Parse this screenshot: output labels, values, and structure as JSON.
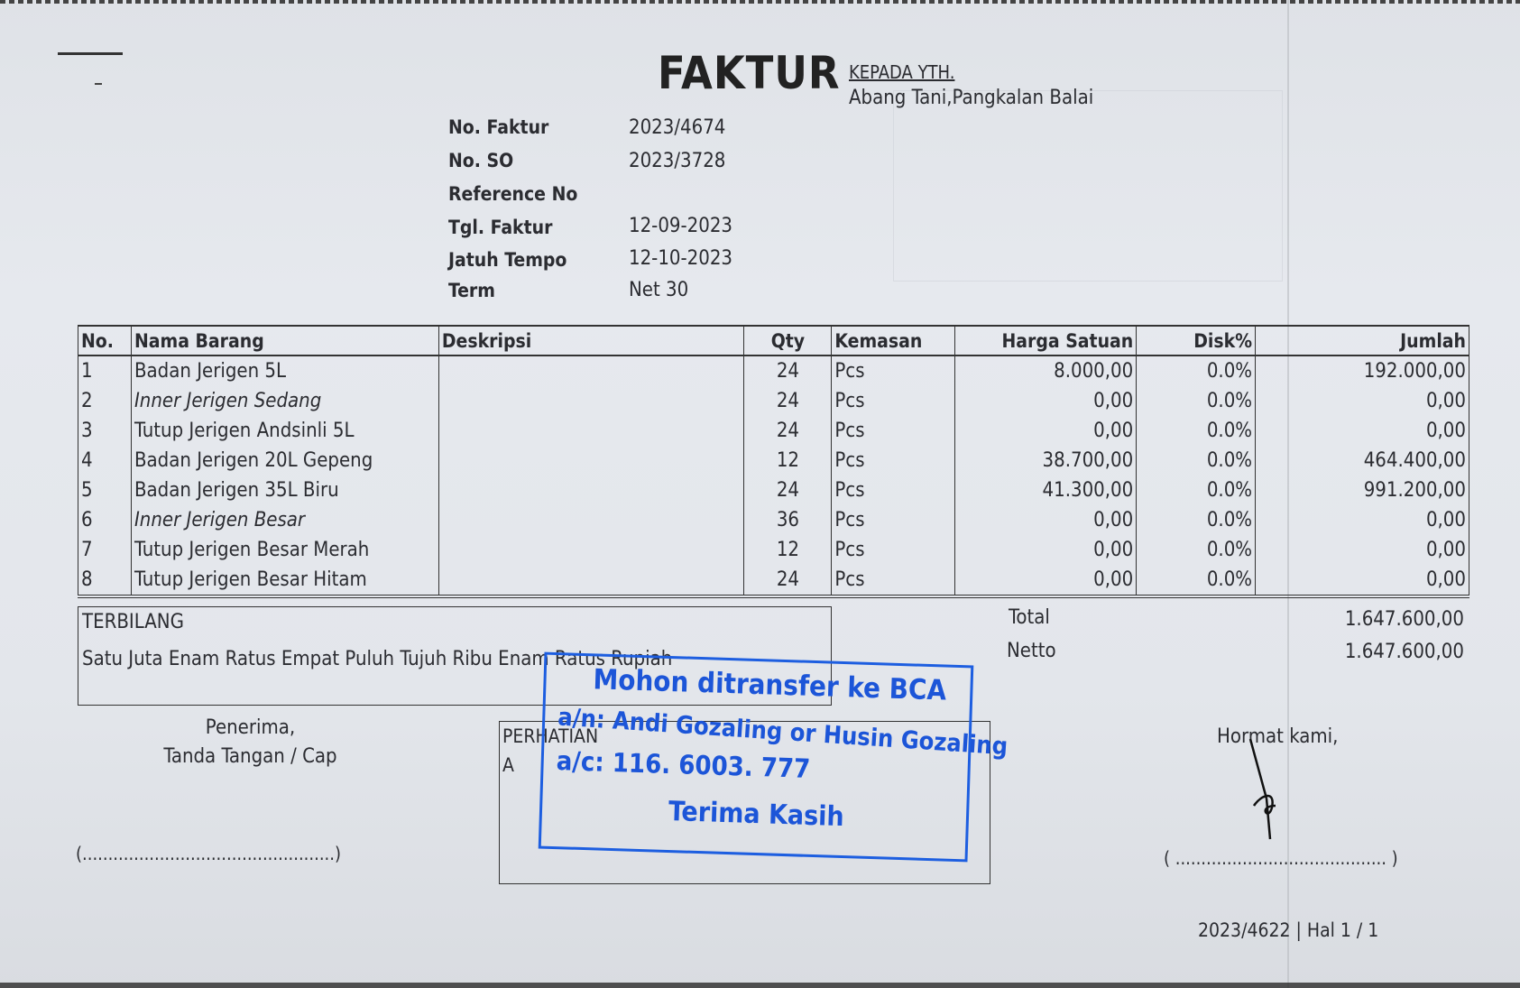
{
  "header": {
    "title": "FAKTUR",
    "recipient_label": "KEPADA YTH.",
    "recipient": "Abang Tani,Pangkalan Balai"
  },
  "meta": [
    {
      "label": "No. Faktur",
      "value": "2023/4674"
    },
    {
      "label": "No. SO",
      "value": "2023/3728"
    },
    {
      "label": "Reference No",
      "value": ""
    },
    {
      "label": "Tgl. Faktur",
      "value": "12-09-2023"
    },
    {
      "label": "Jatuh Tempo",
      "value": "12-10-2023"
    },
    {
      "label": "Term",
      "value": "Net 30"
    }
  ],
  "table": {
    "headers": [
      "No.",
      "Nama Barang",
      "Deskripsi",
      "Qty",
      "Kemasan",
      "Harga Satuan",
      "Disk%",
      "Jumlah"
    ],
    "rows": [
      [
        "1",
        "Badan Jerigen 5L",
        "",
        "24",
        "Pcs",
        "8.000,00",
        "0.0%",
        "192.000,00"
      ],
      [
        "2",
        "Inner Jerigen Sedang",
        "",
        "24",
        "Pcs",
        "0,00",
        "0.0%",
        "0,00"
      ],
      [
        "3",
        "Tutup Jerigen Andsinli 5L",
        "",
        "24",
        "Pcs",
        "0,00",
        "0.0%",
        "0,00"
      ],
      [
        "4",
        "Badan Jerigen 20L Gepeng",
        "",
        "12",
        "Pcs",
        "38.700,00",
        "0.0%",
        "464.400,00"
      ],
      [
        "5",
        "Badan Jerigen 35L Biru",
        "",
        "24",
        "Pcs",
        "41.300,00",
        "0.0%",
        "991.200,00"
      ],
      [
        "6",
        "Inner Jerigen Besar",
        "",
        "36",
        "Pcs",
        "0,00",
        "0.0%",
        "0,00"
      ],
      [
        "7",
        "Tutup Jerigen Besar Merah",
        "",
        "12",
        "Pcs",
        "0,00",
        "0.0%",
        "0,00"
      ],
      [
        "8",
        "Tutup Jerigen Besar Hitam",
        "",
        "24",
        "Pcs",
        "0,00",
        "0.0%",
        "0,00"
      ]
    ]
  },
  "terbilang": {
    "label": "TERBILANG",
    "text": "Satu Juta Enam Ratus Empat Puluh Tujuh Ribu Enam Ratus Rupiah"
  },
  "totals": {
    "total_label": "Total",
    "total_value": "1.647.600,00",
    "netto_label": "Netto",
    "netto_value": "1.647.600,00"
  },
  "receiver": {
    "line1": "Penerima,",
    "line2": "Tanda Tangan / Cap",
    "sign_line": "(.................................................)"
  },
  "perhatian": {
    "label": "PERHATIAN",
    "line2": "A"
  },
  "stamp": {
    "line1": "Mohon ditransfer ke BCA",
    "line2": "a/n: Andi Gozaling or Husin Gozaling",
    "line3": "a/c: 116. 6003. 777",
    "line4": "Terima Kasih",
    "color": "#1c55d8"
  },
  "sender": {
    "line1": "Hormat kami,",
    "sign_line": "( ......................................... )"
  },
  "footer": "2023/4622 | Hal 1 / 1"
}
